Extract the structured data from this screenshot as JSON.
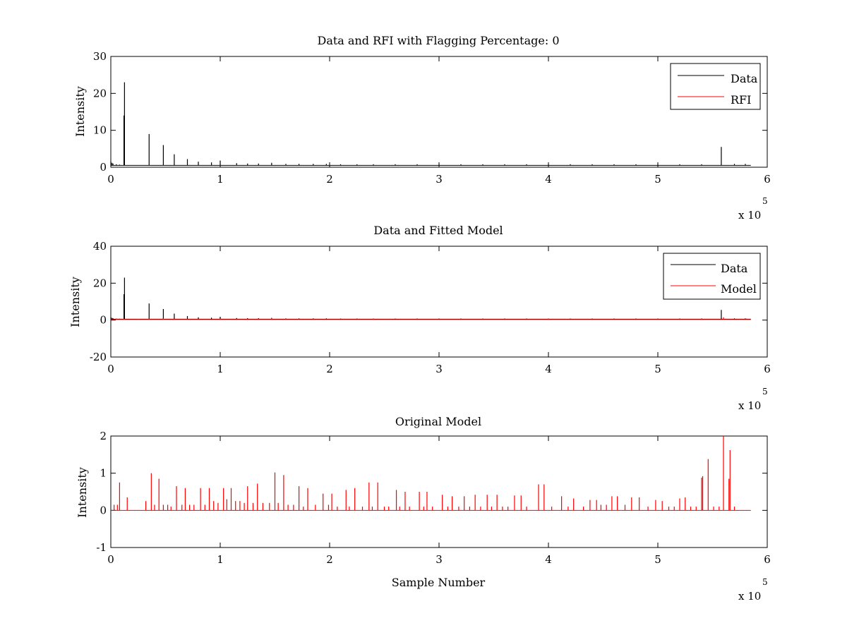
{
  "chart_data": [
    {
      "type": "line",
      "title": "Data and RFI with Flagging Percentage: 0",
      "xlabel": "",
      "ylabel": "Intensity",
      "xlim": [
        0,
        6
      ],
      "ylim": [
        0,
        30
      ],
      "xticks": [
        0,
        1,
        2,
        3,
        4,
        5,
        6
      ],
      "yticks": [
        0,
        10,
        20,
        30
      ],
      "x_multiplier_base": "x 10",
      "x_multiplier_exp": "5",
      "legend_position": "top-right",
      "series": [
        {
          "name": "Data",
          "color": "#000000",
          "baseline": 0.5,
          "x": [
            0.0,
            0.01,
            0.02,
            0.05,
            0.08,
            0.12,
            0.125,
            0.35,
            0.48,
            0.58,
            0.7,
            0.8,
            0.92,
            1.0,
            1.15,
            1.25,
            1.35,
            1.47,
            1.6,
            1.72,
            1.85,
            1.97,
            2.1,
            2.25,
            2.4,
            2.6,
            2.8,
            3.0,
            3.2,
            3.4,
            3.6,
            3.8,
            4.0,
            4.2,
            4.4,
            4.6,
            4.8,
            5.0,
            5.2,
            5.4,
            5.58,
            5.7,
            5.8
          ],
          "y": [
            1.5,
            1.2,
            1.0,
            0.8,
            0.7,
            14.0,
            23.0,
            9.0,
            6.0,
            3.5,
            2.2,
            1.5,
            1.3,
            1.8,
            1.1,
            1.0,
            1.0,
            1.2,
            0.9,
            0.9,
            0.9,
            0.9,
            0.8,
            0.8,
            0.8,
            0.8,
            0.8,
            0.8,
            0.8,
            0.8,
            0.8,
            0.8,
            0.8,
            0.8,
            0.8,
            0.8,
            0.8,
            0.8,
            0.8,
            0.8,
            5.5,
            0.9,
            0.9
          ]
        },
        {
          "name": "RFI",
          "color": "#ff0000",
          "baseline": 0.5,
          "x": [],
          "y": []
        }
      ]
    },
    {
      "type": "line",
      "title": "Data and Fitted Model",
      "xlabel": "",
      "ylabel": "Intensity",
      "xlim": [
        0,
        6
      ],
      "ylim": [
        -20,
        40
      ],
      "xticks": [
        0,
        1,
        2,
        3,
        4,
        5,
        6
      ],
      "yticks": [
        -20,
        0,
        20,
        40
      ],
      "x_multiplier_base": "x 10",
      "x_multiplier_exp": "5",
      "legend_position": "top-right",
      "series": [
        {
          "name": "Data",
          "color": "#000000",
          "baseline": 0.5,
          "x": [
            0.0,
            0.01,
            0.02,
            0.05,
            0.08,
            0.12,
            0.125,
            0.35,
            0.48,
            0.58,
            0.7,
            0.8,
            0.92,
            1.0,
            1.15,
            1.25,
            1.35,
            1.47,
            1.6,
            1.72,
            1.85,
            1.97,
            2.1,
            2.25,
            2.4,
            2.6,
            2.8,
            3.0,
            3.2,
            3.4,
            3.6,
            3.8,
            4.0,
            4.2,
            4.4,
            4.6,
            4.8,
            5.0,
            5.2,
            5.4,
            5.58,
            5.7,
            5.8
          ],
          "y": [
            1.5,
            1.2,
            1.0,
            0.8,
            0.7,
            14.0,
            23.0,
            9.0,
            6.0,
            3.5,
            2.2,
            1.5,
            1.3,
            1.8,
            1.1,
            1.0,
            1.0,
            1.2,
            0.9,
            0.9,
            0.9,
            0.9,
            0.8,
            0.8,
            0.8,
            0.8,
            0.8,
            0.8,
            0.8,
            0.8,
            0.8,
            0.8,
            0.8,
            0.8,
            0.8,
            0.8,
            0.8,
            0.8,
            0.8,
            0.8,
            5.5,
            0.9,
            0.9
          ]
        },
        {
          "name": "Model",
          "color": "#ff0000",
          "baseline": 0.3,
          "x": [
            0.05,
            0.12,
            0.25,
            0.35,
            0.48,
            0.58,
            0.7,
            0.8,
            1.0,
            1.15,
            1.25,
            1.35,
            1.47,
            1.6,
            1.72,
            1.85,
            2.0,
            2.2,
            2.4,
            2.6,
            2.8,
            3.0,
            3.2,
            3.4,
            3.6,
            3.8,
            4.0,
            4.2,
            4.4,
            4.6,
            4.8,
            5.0,
            5.2,
            5.4,
            5.6
          ],
          "y": [
            0.8,
            0.8,
            0.6,
            0.8,
            1.0,
            0.7,
            0.6,
            0.6,
            0.7,
            0.6,
            0.6,
            0.7,
            1.0,
            0.9,
            0.6,
            0.6,
            0.5,
            0.5,
            0.7,
            0.5,
            0.5,
            0.4,
            0.4,
            0.4,
            0.4,
            0.4,
            0.7,
            0.4,
            0.3,
            0.3,
            0.3,
            0.3,
            0.3,
            0.9,
            1.5
          ]
        }
      ]
    },
    {
      "type": "line",
      "title": "Original Model",
      "xlabel": "Sample Number",
      "ylabel": "Intensity",
      "xlim": [
        0,
        6
      ],
      "ylim": [
        -1,
        2
      ],
      "xticks": [
        0,
        1,
        2,
        3,
        4,
        5,
        6
      ],
      "yticks": [
        -1,
        0,
        1,
        2
      ],
      "x_multiplier_base": "x 10",
      "x_multiplier_exp": "5",
      "legend_position": "none",
      "series": [
        {
          "name": "",
          "color": "#ff0000",
          "baseline": 0.0,
          "x": [
            0.03,
            0.06,
            0.08,
            0.15,
            0.32,
            0.37,
            0.4,
            0.44,
            0.48,
            0.52,
            0.55,
            0.6,
            0.65,
            0.68,
            0.72,
            0.76,
            0.82,
            0.86,
            0.9,
            0.94,
            0.98,
            1.03,
            1.06,
            1.1,
            1.14,
            1.18,
            1.22,
            1.25,
            1.3,
            1.34,
            1.39,
            1.45,
            1.5,
            1.53,
            1.58,
            1.62,
            1.67,
            1.72,
            1.76,
            1.8,
            1.87,
            1.94,
            1.99,
            2.02,
            2.07,
            2.15,
            2.18,
            2.23,
            2.3,
            2.36,
            2.39,
            2.44,
            2.5,
            2.54,
            2.61,
            2.64,
            2.69,
            2.73,
            2.82,
            2.86,
            2.89,
            2.94,
            3.03,
            3.08,
            3.12,
            3.18,
            3.23,
            3.28,
            3.33,
            3.38,
            3.44,
            3.48,
            3.53,
            3.58,
            3.63,
            3.69,
            3.75,
            3.8,
            3.91,
            3.96,
            4.03,
            4.12,
            4.18,
            4.23,
            4.32,
            4.38,
            4.44,
            4.48,
            4.53,
            4.58,
            4.63,
            4.7,
            4.76,
            4.83,
            4.91,
            4.98,
            5.04,
            5.1,
            5.15,
            5.2,
            5.25,
            5.3,
            5.35,
            5.4,
            5.41,
            5.46,
            5.51,
            5.56,
            5.6,
            5.65,
            5.66,
            5.7
          ],
          "y": [
            0.15,
            0.15,
            0.75,
            0.35,
            0.25,
            1.0,
            0.15,
            0.85,
            0.15,
            0.15,
            0.1,
            0.65,
            0.15,
            0.6,
            0.15,
            0.15,
            0.6,
            0.15,
            0.6,
            0.25,
            0.2,
            0.6,
            0.3,
            0.6,
            0.25,
            0.25,
            0.2,
            0.65,
            0.2,
            0.72,
            0.2,
            0.2,
            1.02,
            0.2,
            0.95,
            0.15,
            0.15,
            0.65,
            0.1,
            0.6,
            0.15,
            0.45,
            0.15,
            0.45,
            0.1,
            0.55,
            0.1,
            0.6,
            0.1,
            0.75,
            0.1,
            0.75,
            0.1,
            0.1,
            0.55,
            0.1,
            0.5,
            0.1,
            0.5,
            0.1,
            0.5,
            0.1,
            0.42,
            0.1,
            0.38,
            0.1,
            0.38,
            0.1,
            0.42,
            0.1,
            0.42,
            0.1,
            0.42,
            0.1,
            0.1,
            0.4,
            0.4,
            0.1,
            0.7,
            0.7,
            0.1,
            0.38,
            0.1,
            0.32,
            0.1,
            0.28,
            0.28,
            0.15,
            0.15,
            0.38,
            0.38,
            0.15,
            0.35,
            0.35,
            0.1,
            0.28,
            0.25,
            0.1,
            0.1,
            0.32,
            0.35,
            0.1,
            0.1,
            0.88,
            0.92,
            1.38,
            0.1,
            0.1,
            2.0,
            0.85,
            1.62,
            0.1
          ]
        }
      ]
    }
  ]
}
